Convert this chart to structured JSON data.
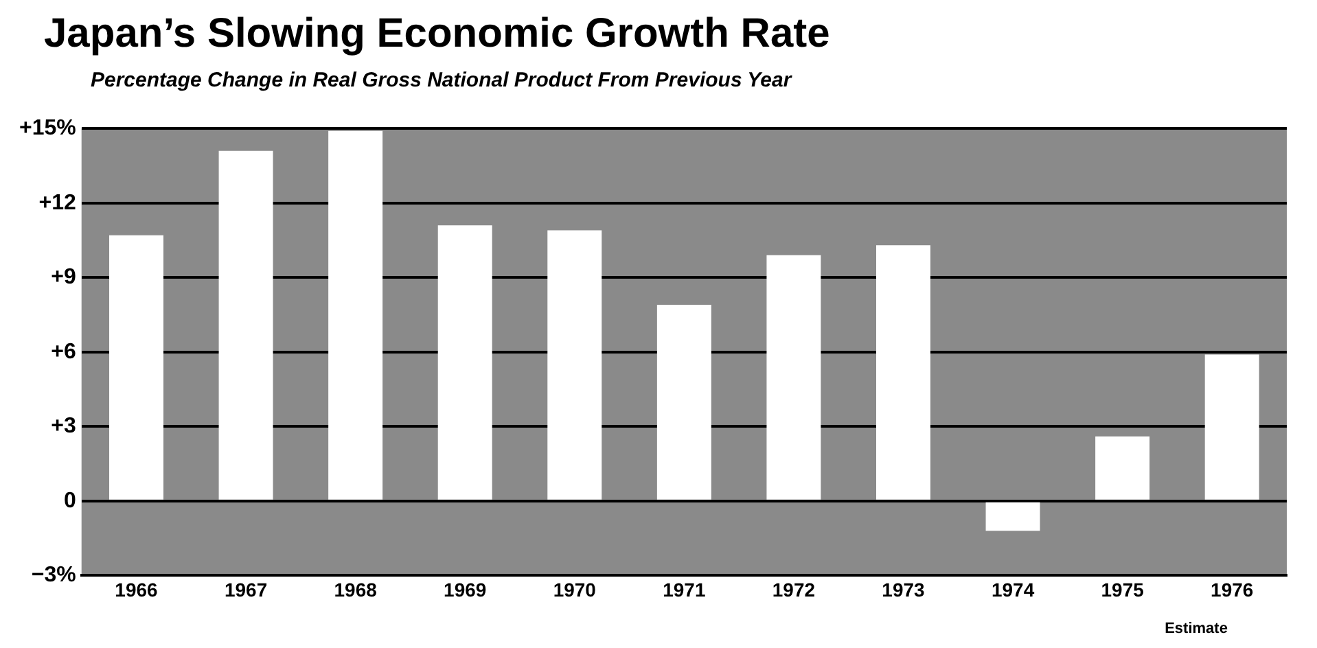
{
  "chart_data": {
    "type": "bar",
    "title": "Japan’s Slowing Economic Growth Rate",
    "subtitle": "Percentage Change in Real Gross National Product From Previous Year",
    "categories": [
      "1966",
      "1967",
      "1968",
      "1969",
      "1970",
      "1971",
      "1972",
      "1973",
      "1974",
      "1975",
      "1976"
    ],
    "values": [
      10.7,
      14.1,
      14.9,
      11.1,
      10.9,
      7.9,
      9.9,
      10.3,
      -1.2,
      2.6,
      5.9
    ],
    "color": "#ffffff",
    "ylim": [
      -3,
      15
    ],
    "yticks": [
      {
        "value": -3,
        "label": "−3%"
      },
      0,
      {
        "value": 3,
        "label": "+3"
      },
      {
        "value": 6,
        "label": "+6"
      },
      {
        "value": 9,
        "label": "+9"
      },
      {
        "value": 12,
        "label": "+12"
      },
      {
        "value": 15,
        "label": "+15%"
      }
    ],
    "grid": "y",
    "annotations": [
      "Estimate"
    ]
  }
}
